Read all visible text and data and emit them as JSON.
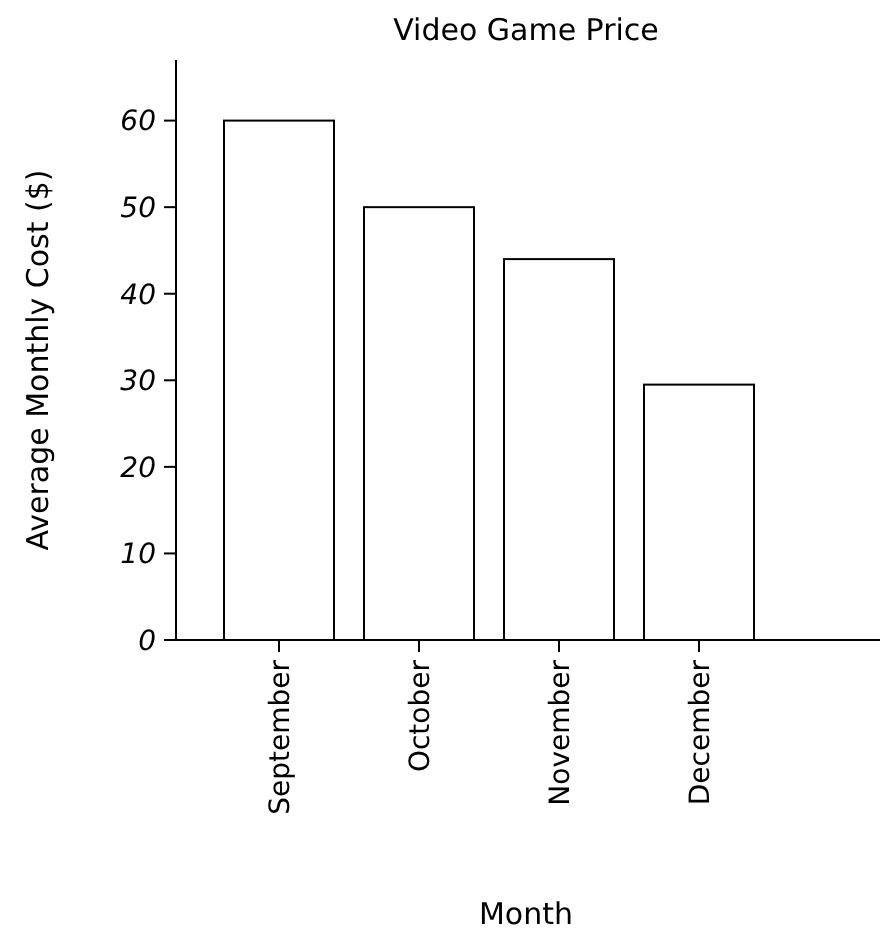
{
  "chart_data": {
    "type": "bar",
    "title": "Video Game Price",
    "xlabel": "Month",
    "ylabel": "Average Monthly Cost ($)",
    "categories": [
      "September",
      "October",
      "November",
      "December"
    ],
    "values": [
      60,
      50,
      44,
      29.5
    ],
    "color": "#ffffff",
    "ylim": [
      0,
      67
    ],
    "yticks": [
      0,
      10,
      20,
      30,
      40,
      50,
      60
    ],
    "grid": false
  }
}
